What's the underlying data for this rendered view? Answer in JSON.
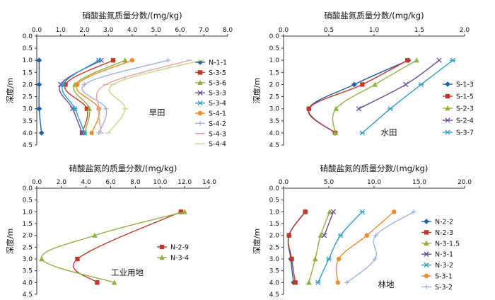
{
  "chart_data": [
    {
      "type": "line",
      "title": "硝酸盐氮质量分数/(mg/kg)",
      "xlabel": "硝酸盐氮质量分数/(mg/kg)",
      "ylabel": "深度/m",
      "x_ticks": [
        "0.0",
        "1.0",
        "2.0",
        "3.0",
        "4.0",
        "5.0",
        "6.0",
        "7.0",
        "8.0"
      ],
      "y_ticks": [
        "0.0",
        "0.5",
        "1.0",
        "1.5",
        "2.0",
        "2.5",
        "3.0",
        "3.5",
        "4.0",
        "4.5"
      ],
      "xlim": [
        0,
        8
      ],
      "ylim": [
        0,
        4.5
      ],
      "annotation": "旱田",
      "legend": "right",
      "series": [
        {
          "name": "N-1-1",
          "color": "#1f5ea8",
          "marker": "diamond",
          "points": [
            [
              0.1,
              1
            ],
            [
              0.1,
              2
            ],
            [
              0.1,
              3
            ],
            [
              0.2,
              4
            ]
          ]
        },
        {
          "name": "S-3-5",
          "color": "#c0392b",
          "marker": "square",
          "points": [
            [
              3.2,
              1
            ],
            [
              1.2,
              2
            ],
            [
              2.1,
              3
            ],
            [
              1.9,
              4
            ]
          ]
        },
        {
          "name": "S-3-6",
          "color": "#8db33a",
          "marker": "triangle",
          "points": [
            [
              3.7,
              1
            ],
            [
              1.6,
              2
            ],
            [
              2.2,
              3
            ],
            [
              2.0,
              4
            ]
          ]
        },
        {
          "name": "S-3-3",
          "color": "#6a4a9c",
          "marker": "x",
          "points": [
            [
              2.7,
              1
            ],
            [
              1.0,
              2
            ],
            [
              1.5,
              3
            ],
            [
              1.9,
              4
            ]
          ]
        },
        {
          "name": "S-3-4",
          "color": "#2e9fc4",
          "marker": "asterisk",
          "points": [
            [
              2.6,
              1
            ],
            [
              1.1,
              2
            ],
            [
              1.6,
              3
            ],
            [
              2.0,
              4
            ]
          ]
        },
        {
          "name": "S-4-1",
          "color": "#f08c28",
          "marker": "circle",
          "points": [
            [
              4.0,
              1
            ],
            [
              1.7,
              2
            ],
            [
              2.6,
              3
            ],
            [
              2.3,
              4
            ]
          ]
        },
        {
          "name": "S-4-2",
          "color": "#9fb3e0",
          "marker": "plus",
          "points": [
            [
              5.5,
              1
            ],
            [
              2.0,
              2
            ],
            [
              2.9,
              3
            ],
            [
              2.6,
              4
            ]
          ]
        },
        {
          "name": "S-4-3",
          "color": "#e8a3a3",
          "marker": "dash",
          "points": [
            [
              6.4,
              1
            ],
            [
              2.9,
              2
            ],
            [
              2.6,
              3
            ],
            [
              2.7,
              4
            ]
          ]
        },
        {
          "name": "S-4-4",
          "color": "#c5d98a",
          "marker": "dash",
          "points": [
            [
              6.9,
              1
            ],
            [
              3.2,
              2
            ],
            [
              3.7,
              3
            ],
            [
              3.0,
              4
            ]
          ]
        }
      ]
    },
    {
      "type": "line",
      "title": "硝酸盐氮质量分数/(mg/kg)",
      "xlabel": "硝酸盐氮质量分数/(mg/kg)",
      "ylabel": "深度/m",
      "x_ticks": [
        "0.0",
        "0.5",
        "1.0",
        "1.5",
        "2.0"
      ],
      "y_ticks": [
        "0.0",
        "0.5",
        "1.0",
        "1.5",
        "2.0",
        "2.5",
        "3.0",
        "3.5",
        "4.0",
        "4.5"
      ],
      "xlim": [
        0,
        2
      ],
      "ylim": [
        0,
        4.5
      ],
      "annotation": "水田",
      "legend": "right",
      "series": [
        {
          "name": "S-1-3",
          "color": "#1f5ea8",
          "marker": "diamond",
          "points": [
            [
              1.38,
              1
            ],
            [
              0.78,
              2
            ],
            [
              0.28,
              3
            ],
            [
              0.57,
              4
            ]
          ]
        },
        {
          "name": "S-1-5",
          "color": "#c0392b",
          "marker": "square",
          "points": [
            [
              1.37,
              1
            ],
            [
              0.87,
              2
            ],
            [
              0.28,
              3
            ],
            [
              0.57,
              4
            ]
          ]
        },
        {
          "name": "S-2-3",
          "color": "#8db33a",
          "marker": "triangle",
          "points": [
            [
              1.47,
              1
            ],
            [
              1.01,
              2
            ],
            [
              0.58,
              3
            ],
            [
              0.57,
              4
            ]
          ]
        },
        {
          "name": "S-2-4",
          "color": "#6a4a9c",
          "marker": "x",
          "points": [
            [
              1.72,
              1
            ],
            [
              1.35,
              2
            ],
            [
              0.83,
              3
            ]
          ]
        },
        {
          "name": "S-3-7",
          "color": "#2e9fc4",
          "marker": "asterisk",
          "points": [
            [
              1.87,
              1
            ],
            [
              1.52,
              2
            ],
            [
              1.18,
              3
            ],
            [
              0.87,
              4
            ]
          ]
        }
      ]
    },
    {
      "type": "line",
      "title": "硝酸盐氮的质量分数/(mg/kg)",
      "xlabel": "硝酸盐氮的质量分数/(mg/kg)",
      "ylabel": "深度/m",
      "x_ticks": [
        "0.0",
        "2.0",
        "4.0",
        "6.0",
        "8.0",
        "10.0",
        "12.0",
        "14.0"
      ],
      "y_ticks": [
        "0.0",
        "0.5",
        "1.0",
        "1.5",
        "2.0",
        "2.5",
        "3.0",
        "3.5",
        "4.0",
        "4.5"
      ],
      "xlim": [
        0,
        14
      ],
      "ylim": [
        0,
        4.5
      ],
      "annotation": "工业用地",
      "legend": "right",
      "series": [
        {
          "name": "N-2-9",
          "color": "#c0392b",
          "marker": "square",
          "points": [
            [
              11.7,
              1
            ],
            [
              3.3,
              3
            ],
            [
              4.9,
              4
            ]
          ]
        },
        {
          "name": "N-3-4",
          "color": "#8db33a",
          "marker": "triangle",
          "points": [
            [
              12.0,
              1
            ],
            [
              4.7,
              2
            ],
            [
              0.4,
              3
            ],
            [
              6.3,
              4
            ]
          ]
        }
      ]
    },
    {
      "type": "line",
      "title": "硝酸盐氮的质量分数/(mg/kg)",
      "xlabel": "硝酸盐氮的质量分数/(mg/kg)",
      "ylabel": "深度/m",
      "x_ticks": [
        "0.0",
        "5.0",
        "10.0",
        "15.0",
        "20.0"
      ],
      "y_ticks": [
        "0.0",
        "0.5",
        "1.0",
        "1.5",
        "2.0",
        "2.5",
        "3.0",
        "3.5",
        "4.0",
        "4.5"
      ],
      "xlim": [
        0,
        20
      ],
      "ylim": [
        0,
        4.5
      ],
      "annotation": "林地",
      "legend": "right",
      "series": [
        {
          "name": "N-2-2",
          "color": "#1f5ea8",
          "marker": "diamond",
          "points": [
            [
              2.4,
              1
            ],
            [
              0.6,
              2
            ],
            [
              0.8,
              3
            ],
            [
              1.1,
              4
            ]
          ]
        },
        {
          "name": "N-2-3",
          "color": "#c0392b",
          "marker": "square",
          "points": [
            [
              2.4,
              1
            ],
            [
              0.6,
              2
            ],
            [
              0.9,
              3
            ],
            [
              1.3,
              4
            ]
          ]
        },
        {
          "name": "N-3-1.5",
          "color": "#8db33a",
          "marker": "triangle",
          "points": [
            [
              5.1,
              1
            ],
            [
              4.1,
              2
            ],
            [
              3.5,
              3
            ],
            [
              2.8,
              4
            ]
          ]
        },
        {
          "name": "N-3-1",
          "color": "#6a4a9c",
          "marker": "x",
          "points": [
            [
              5.5,
              1
            ],
            [
              4.5,
              2
            ]
          ]
        },
        {
          "name": "N-3-2",
          "color": "#2e9fc4",
          "marker": "asterisk",
          "points": [
            [
              8.7,
              1
            ],
            [
              6.3,
              2
            ],
            [
              5.0,
              3
            ],
            [
              3.8,
              4
            ]
          ]
        },
        {
          "name": "S-3-1",
          "color": "#f08c28",
          "marker": "circle",
          "points": [
            [
              12.2,
              1
            ],
            [
              9.2,
              2
            ],
            [
              6.1,
              3
            ],
            [
              6.0,
              4
            ]
          ]
        },
        {
          "name": "S-3-2",
          "color": "#9fb3e0",
          "marker": "plus",
          "points": [
            [
              14.4,
              1
            ],
            [
              10.2,
              2
            ],
            [
              10.1,
              3
            ],
            [
              7.0,
              4
            ]
          ]
        }
      ]
    }
  ]
}
